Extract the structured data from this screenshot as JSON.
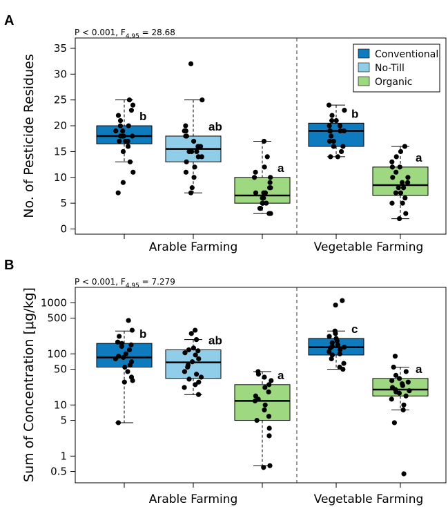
{
  "colors": {
    "conventional": "#0e7bbf",
    "no_till": "#8fcde9",
    "organic": "#9ed880"
  },
  "legend": [
    {
      "name": "Conventional",
      "color": "#0e7bbf"
    },
    {
      "name": "No-Till",
      "color": "#8fcde9"
    },
    {
      "name": "Organic",
      "color": "#9ed880"
    }
  ],
  "chart_data": [
    {
      "panel_label": "A",
      "type": "box",
      "stat_main": "P < 0.001, F",
      "stat_sub": "4,95",
      "stat_tail": " = 28.68",
      "ylabel": "No. of Pesticide Residues",
      "yscale": "linear",
      "ylim": [
        -1,
        37
      ],
      "yticks": [
        0,
        5,
        10,
        15,
        20,
        25,
        30,
        35
      ],
      "ytick_labels": [
        "0",
        "5",
        "10",
        "15",
        "20",
        "25",
        "30",
        "35"
      ],
      "groups": [
        "Arable Farming",
        "Vegetable Farming"
      ],
      "boxes": [
        {
          "group": "Arable Farming",
          "system": "Conventional",
          "color": "#0e7bbf",
          "letter": "b",
          "wmin": 13,
          "q1": 16.5,
          "median": 18,
          "q3": 20,
          "wmax": 25,
          "points": [
            7,
            9,
            11,
            13,
            15,
            16,
            17,
            17,
            17,
            18,
            18,
            18,
            18,
            19,
            19,
            20,
            20,
            21,
            22,
            23,
            24,
            25
          ]
        },
        {
          "group": "Arable Farming",
          "system": "No-Till",
          "color": "#8fcde9",
          "letter": "ab",
          "wmin": 7,
          "q1": 13,
          "median": 15.5,
          "q3": 18,
          "wmax": 25,
          "points": [
            7,
            8,
            10,
            11,
            12,
            13,
            14,
            14,
            15,
            15,
            15,
            16,
            16,
            17,
            18,
            18,
            19,
            19,
            20,
            25,
            32
          ]
        },
        {
          "group": "Arable Farming",
          "system": "Organic",
          "color": "#9ed880",
          "letter": "a",
          "wmin": 3,
          "q1": 5,
          "median": 6.5,
          "q3": 10,
          "wmax": 17,
          "points": [
            3,
            3,
            4,
            4,
            5,
            5,
            5,
            6,
            6,
            6,
            7,
            7,
            7,
            8,
            8,
            9,
            10,
            10,
            11,
            12,
            14,
            17
          ]
        },
        {
          "group": "Vegetable Farming",
          "system": "Conventional",
          "color": "#0e7bbf",
          "letter": "b",
          "wmin": 14,
          "q1": 16,
          "median": 19,
          "q3": 20.5,
          "wmax": 24,
          "points": [
            14,
            14,
            15,
            16,
            16,
            17,
            17,
            18,
            19,
            19,
            19,
            19,
            20,
            20,
            21,
            21,
            22,
            23,
            24
          ]
        },
        {
          "group": "Vegetable Farming",
          "system": "Organic",
          "color": "#9ed880",
          "letter": "a",
          "wmin": 2,
          "q1": 6.5,
          "median": 8.5,
          "q3": 12,
          "wmax": 16,
          "points": [
            2,
            3,
            5,
            5,
            6,
            7,
            7,
            8,
            8,
            9,
            9,
            10,
            10,
            11,
            12,
            12,
            13,
            14,
            15,
            16
          ]
        }
      ]
    },
    {
      "panel_label": "B",
      "type": "box",
      "stat_main": "P < 0.001, F",
      "stat_sub": "4,95",
      "stat_tail": " = 7.279",
      "ylabel": "Sum of Concentration [μg/kg]",
      "yscale": "log",
      "ylim": [
        0.3,
        2000
      ],
      "yticks": [
        0.5,
        1,
        5,
        10,
        50,
        100,
        500,
        1000
      ],
      "ytick_labels": [
        "0.5",
        "1",
        "5",
        "10",
        "50",
        "100",
        "500",
        "1000"
      ],
      "groups": [
        "Arable Farming",
        "Vegetable Farming"
      ],
      "boxes": [
        {
          "group": "Arable Farming",
          "system": "Conventional",
          "color": "#0e7bbf",
          "letter": "b",
          "wmin": 4.5,
          "q1": 55,
          "median": 85,
          "q3": 160,
          "wmax": 280,
          "points": [
            4.5,
            28,
            30,
            35,
            45,
            55,
            60,
            70,
            80,
            85,
            90,
            100,
            120,
            140,
            150,
            160,
            170,
            220,
            290,
            450
          ]
        },
        {
          "group": "Arable Farming",
          "system": "No-Till",
          "color": "#8fcde9",
          "letter": "ab",
          "wmin": 16,
          "q1": 33,
          "median": 68,
          "q3": 120,
          "wmax": 190,
          "points": [
            16,
            22,
            25,
            28,
            32,
            35,
            40,
            45,
            55,
            60,
            70,
            80,
            95,
            105,
            115,
            120,
            130,
            190,
            250,
            290
          ]
        },
        {
          "group": "Arable Farming",
          "system": "Organic",
          "color": "#9ed880",
          "letter": "a",
          "wmin": 0.65,
          "q1": 5,
          "median": 12,
          "q3": 25,
          "wmax": 45,
          "points": [
            0.6,
            0.65,
            2.5,
            3.5,
            5,
            6,
            8,
            10,
            12,
            13,
            15,
            18,
            22,
            25,
            30,
            35,
            40,
            45
          ]
        },
        {
          "group": "Vegetable Farming",
          "system": "Conventional",
          "color": "#0e7bbf",
          "letter": "c",
          "wmin": 50,
          "q1": 95,
          "median": 135,
          "q3": 200,
          "wmax": 280,
          "points": [
            50,
            55,
            65,
            80,
            95,
            100,
            110,
            120,
            130,
            135,
            140,
            150,
            165,
            180,
            200,
            220,
            250,
            280,
            900,
            1100
          ]
        },
        {
          "group": "Vegetable Farming",
          "system": "Organic",
          "color": "#9ed880",
          "letter": "a",
          "wmin": 8,
          "q1": 15,
          "median": 20,
          "q3": 33,
          "wmax": 55,
          "points": [
            0.45,
            4.5,
            8,
            10,
            13,
            15,
            17,
            18,
            19,
            20,
            22,
            24,
            26,
            28,
            30,
            33,
            38,
            45,
            55,
            90
          ]
        }
      ]
    }
  ]
}
